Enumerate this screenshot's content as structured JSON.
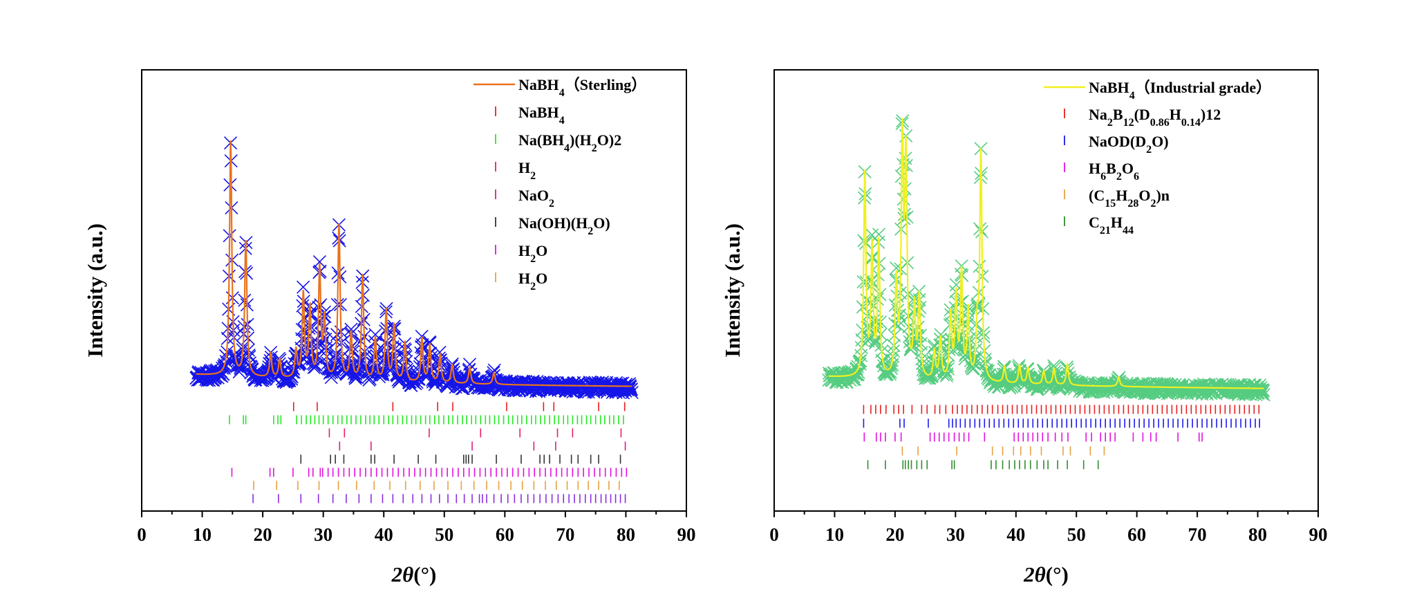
{
  "chart_data": [
    {
      "type": "scatter",
      "ylabel": "Intensity (a.u.)",
      "xlabel_symbol": "2θ",
      "xlabel_unit": "(°)",
      "xlim": [
        0,
        90
      ],
      "xticks": [
        0,
        10,
        20,
        30,
        40,
        50,
        60,
        70,
        80,
        90
      ],
      "yticks_shown": false,
      "legend_position": "top-right",
      "colors": {
        "observed": "#1515e8",
        "calculated": "#e8731c"
      },
      "pattern": {
        "observed_marker": "x",
        "x_range": [
          9,
          81
        ],
        "baseline_rel": 0.06,
        "peaks": [
          {
            "x": 14.7,
            "h": 1.0
          },
          {
            "x": 17.2,
            "h": 0.58
          },
          {
            "x": 21.3,
            "h": 0.1
          },
          {
            "x": 22.8,
            "h": 0.08
          },
          {
            "x": 25.5,
            "h": 0.12
          },
          {
            "x": 26.7,
            "h": 0.36
          },
          {
            "x": 27.8,
            "h": 0.3
          },
          {
            "x": 29.4,
            "h": 0.47
          },
          {
            "x": 30.2,
            "h": 0.25
          },
          {
            "x": 32.6,
            "h": 0.66
          },
          {
            "x": 34.6,
            "h": 0.2
          },
          {
            "x": 36.5,
            "h": 0.45
          },
          {
            "x": 38.6,
            "h": 0.18
          },
          {
            "x": 40.4,
            "h": 0.3
          },
          {
            "x": 41.7,
            "h": 0.24
          },
          {
            "x": 43.5,
            "h": 0.17
          },
          {
            "x": 46.3,
            "h": 0.19
          },
          {
            "x": 47.6,
            "h": 0.16
          },
          {
            "x": 49.3,
            "h": 0.12
          },
          {
            "x": 51.3,
            "h": 0.08
          },
          {
            "x": 54.2,
            "h": 0.07
          },
          {
            "x": 58.2,
            "h": 0.05
          }
        ]
      },
      "series": [
        {
          "name": "NaBH4（Sterling）",
          "label_parts": [
            [
              "NaBH",
              ""
            ],
            [
              "4",
              "sub"
            ],
            [
              "（Sterling）",
              ""
            ]
          ],
          "role": "calc",
          "color": "#e8731c"
        },
        {
          "name": "NaBH4",
          "label_parts": [
            [
              "NaBH",
              ""
            ],
            [
              "4",
              "sub"
            ]
          ],
          "role": "phase",
          "color": "#e81e1e",
          "reflections": [
            25.1,
            29.0,
            41.5,
            48.9,
            51.4,
            60.3,
            66.4,
            68.1,
            75.5,
            79.8
          ]
        },
        {
          "name": "Na(BH4)(H2O)2",
          "label_parts": [
            [
              "Na(BH",
              ""
            ],
            [
              "4",
              "sub"
            ],
            [
              ")(H",
              ""
            ],
            [
              "2",
              "sub"
            ],
            [
              "O)2",
              ""
            ]
          ],
          "role": "phase",
          "color": "#22e822",
          "reflections": [
            14.5,
            16.8,
            17.2,
            21.8,
            22.5,
            23.0,
            25.6,
            26.4,
            27.2,
            27.9,
            28.6,
            29.3,
            30.0,
            30.8,
            31.6,
            32.4,
            33.1,
            33.9,
            34.6,
            35.4,
            36.2,
            37.0,
            37.7,
            38.4,
            39.2,
            40.0,
            40.8,
            41.5,
            42.3,
            43.1,
            43.8,
            44.6,
            45.3,
            46.1,
            46.9,
            47.6,
            48.4,
            49.1,
            49.9,
            50.7,
            51.4,
            52.2,
            53.0,
            53.7,
            54.5,
            55.2,
            56.0,
            56.8,
            57.5,
            58.3,
            59.0,
            59.8,
            60.6,
            61.3,
            62.1,
            62.8,
            63.6,
            64.4,
            65.1,
            65.9,
            66.6,
            67.4,
            68.2,
            68.9,
            69.7,
            70.4,
            71.2,
            72.0,
            72.7,
            73.5,
            74.2,
            75.0,
            75.8,
            76.5,
            77.3,
            78.0,
            78.8,
            79.6
          ]
        },
        {
          "name": "H2",
          "label_parts": [
            [
              "H",
              ""
            ],
            [
              "2",
              "sub"
            ]
          ],
          "role": "phase",
          "color": "#e82060",
          "reflections": [
            31.0,
            33.5,
            47.5,
            56.0,
            62.5,
            68.7,
            71.2,
            79.2
          ]
        },
        {
          "name": "NaO2",
          "label_parts": [
            [
              "NaO",
              ""
            ],
            [
              "2",
              "sub"
            ]
          ],
          "role": "phase",
          "color": "#e01888",
          "reflections": [
            32.7,
            37.9,
            54.6,
            64.8,
            68.4,
            79.9
          ]
        },
        {
          "name": "Na(OH)(H2O)",
          "label_parts": [
            [
              "Na(OH)(H",
              ""
            ],
            [
              "2",
              "sub"
            ],
            [
              "O)",
              ""
            ]
          ],
          "role": "phase",
          "color": "#333333",
          "reflections": [
            26.3,
            31.2,
            32.0,
            33.4,
            37.9,
            38.5,
            41.7,
            45.7,
            48.6,
            53.2,
            53.6,
            54.0,
            54.6,
            58.6,
            62.7,
            65.8,
            66.5,
            67.4,
            69.1,
            71.0,
            72.1,
            74.2,
            75.5,
            79.1
          ]
        },
        {
          "name": "H2O",
          "label_parts": [
            [
              "H",
              ""
            ],
            [
              "2",
              "sub"
            ],
            [
              "O",
              ""
            ]
          ],
          "role": "phase",
          "color": "#e010e0",
          "reflections": [
            14.9,
            21.2,
            21.8,
            25.0,
            27.6,
            28.3,
            29.5,
            29.9,
            30.8,
            31.6,
            32.5,
            33.4,
            34.3,
            35.2,
            36.1,
            37.0,
            37.9,
            38.8,
            39.7,
            40.6,
            41.5,
            42.4,
            43.3,
            44.2,
            45.1,
            46.0,
            46.9,
            47.8,
            48.7,
            49.6,
            50.5,
            51.4,
            52.3,
            53.2,
            54.1,
            55.0,
            55.9,
            56.8,
            57.7,
            58.6,
            59.5,
            60.4,
            61.3,
            62.2,
            63.1,
            64.0,
            64.9,
            65.8,
            66.7,
            67.6,
            68.5,
            69.4,
            70.3,
            71.2,
            72.1,
            73.0,
            73.9,
            74.8,
            75.7,
            76.6,
            77.5,
            78.4,
            79.3,
            80.1
          ]
        },
        {
          "name": "H2O",
          "label_parts": [
            [
              "H",
              ""
            ],
            [
              "2",
              "sub"
            ],
            [
              "O",
              ""
            ]
          ],
          "role": "phase",
          "color": "#e8a040",
          "reflections": [
            18.5,
            22.3,
            25.8,
            29.3,
            32.5,
            35.5,
            38.4,
            41.0,
            43.6,
            46.0,
            48.3,
            50.6,
            52.8,
            54.9,
            57.0,
            59.0,
            61.0,
            62.9,
            64.8,
            66.7,
            68.5,
            70.3,
            72.1,
            73.8,
            75.5,
            77.2,
            78.9
          ]
        },
        {
          "role": "phase",
          "color": "#8a2be2",
          "reflections": [
            18.4,
            22.6,
            26.3,
            29.2,
            31.6,
            33.8,
            35.9,
            37.9,
            39.8,
            41.5,
            43.2,
            44.8,
            46.3,
            47.8,
            49.2,
            50.6,
            52.0,
            53.3,
            54.6,
            55.8,
            56.3,
            57.0,
            58.2,
            59.4,
            60.5,
            61.6,
            62.7,
            63.8,
            64.8,
            65.8,
            66.8,
            67.8,
            68.8,
            69.7,
            70.6,
            71.5,
            72.4,
            73.3,
            74.2,
            75.0,
            75.9,
            76.7,
            77.5,
            78.3,
            79.1,
            79.9
          ]
        }
      ]
    },
    {
      "type": "scatter",
      "ylabel": "Intensity (a.u.)",
      "xlabel_symbol": "2θ",
      "xlabel_unit": "(°)",
      "xlim": [
        0,
        90
      ],
      "xticks": [
        0,
        10,
        20,
        30,
        40,
        50,
        60,
        70,
        80,
        90
      ],
      "yticks_shown": false,
      "legend_position": "top-right",
      "colors": {
        "observed": "#55cc80",
        "calculated": "#f0f020"
      },
      "pattern": {
        "observed_marker": "x",
        "x_range": [
          9,
          81
        ],
        "baseline_rel": 0.06,
        "peaks": [
          {
            "x": 15.0,
            "h": 0.88
          },
          {
            "x": 16.2,
            "h": 0.55
          },
          {
            "x": 17.3,
            "h": 0.58
          },
          {
            "x": 20.2,
            "h": 0.4
          },
          {
            "x": 21.2,
            "h": 1.0
          },
          {
            "x": 21.8,
            "h": 0.92
          },
          {
            "x": 23.2,
            "h": 0.3
          },
          {
            "x": 24.0,
            "h": 0.35
          },
          {
            "x": 26.5,
            "h": 0.12
          },
          {
            "x": 27.5,
            "h": 0.18
          },
          {
            "x": 29.2,
            "h": 0.28
          },
          {
            "x": 30.1,
            "h": 0.36
          },
          {
            "x": 31.0,
            "h": 0.46
          },
          {
            "x": 32.1,
            "h": 0.3
          },
          {
            "x": 33.6,
            "h": 0.22
          },
          {
            "x": 34.2,
            "h": 0.98
          },
          {
            "x": 38.1,
            "h": 0.07
          },
          {
            "x": 40.6,
            "h": 0.08
          },
          {
            "x": 42.0,
            "h": 0.07
          },
          {
            "x": 44.6,
            "h": 0.06
          },
          {
            "x": 46.3,
            "h": 0.07
          },
          {
            "x": 48.5,
            "h": 0.09
          },
          {
            "x": 57.0,
            "h": 0.04
          }
        ]
      },
      "series": [
        {
          "name": "NaBH4（Industrial grade）",
          "label_parts": [
            [
              "NaBH",
              ""
            ],
            [
              "4",
              "sub"
            ],
            [
              "（Industrial grade）",
              ""
            ]
          ],
          "role": "calc",
          "color": "#f0f020"
        },
        {
          "name": "Na2B12(D0.86H0.14)12",
          "label_parts": [
            [
              "Na",
              ""
            ],
            [
              "2",
              "sub"
            ],
            [
              "B",
              ""
            ],
            [
              "12",
              "sub"
            ],
            [
              "(D",
              ""
            ],
            [
              "0.86",
              "sub"
            ],
            [
              "H",
              ""
            ],
            [
              "0.14",
              "sub"
            ],
            [
              ")12",
              ""
            ]
          ],
          "role": "phase",
          "color": "#e81e1e",
          "reflections": [
            14.8,
            16.0,
            16.8,
            17.6,
            18.5,
            19.8,
            20.6,
            21.4,
            22.8,
            24.4,
            25.3,
            26.6,
            27.4,
            28.4,
            29.5,
            30.3,
            31.1,
            31.9,
            32.7,
            33.6,
            34.4,
            35.3,
            36.1,
            37.0,
            37.8,
            38.6,
            39.4,
            40.2,
            41.0,
            41.8,
            42.6,
            43.4,
            44.2,
            45.0,
            45.8,
            46.6,
            47.4,
            48.2,
            49.0,
            49.8,
            50.6,
            51.4,
            52.2,
            53.0,
            53.8,
            54.6,
            55.4,
            56.2,
            57.0,
            57.8,
            58.6,
            59.4,
            60.2,
            61.0,
            61.8,
            62.6,
            63.4,
            64.2,
            65.0,
            65.8,
            66.6,
            67.4,
            68.2,
            69.0,
            69.8,
            70.6,
            71.4,
            72.2,
            73.0,
            73.8,
            74.6,
            75.4,
            76.2,
            77.0,
            77.8,
            78.6,
            79.4,
            80.2
          ]
        },
        {
          "name": "NaOD(D2O)",
          "label_parts": [
            [
              "NaOD(D",
              ""
            ],
            [
              "2",
              "sub"
            ],
            [
              "O)",
              ""
            ]
          ],
          "role": "phase",
          "color": "#1a1ae8",
          "reflections": [
            14.8,
            20.8,
            21.5,
            25.5,
            28.9,
            29.5,
            30.1,
            30.8,
            31.6,
            32.4,
            33.2,
            34.0,
            34.8,
            35.6,
            36.4,
            37.2,
            38.0,
            38.8,
            39.6,
            40.4,
            41.2,
            42.0,
            42.8,
            43.6,
            44.4,
            45.2,
            46.0,
            46.8,
            47.6,
            48.4,
            49.2,
            50.0,
            50.8,
            51.6,
            52.4,
            53.2,
            54.0,
            54.8,
            55.6,
            56.4,
            57.2,
            58.0,
            58.8,
            59.6,
            60.4,
            61.2,
            62.0,
            62.8,
            63.6,
            64.4,
            65.2,
            66.0,
            66.8,
            67.6,
            68.4,
            69.2,
            70.0,
            70.8,
            71.6,
            72.4,
            73.2,
            74.0,
            74.8,
            75.6,
            76.4,
            77.2,
            78.0,
            78.8,
            79.6,
            80.3
          ]
        },
        {
          "name": "H6B2O6",
          "label_parts": [
            [
              "H",
              ""
            ],
            [
              "6",
              "sub"
            ],
            [
              "B",
              ""
            ],
            [
              "2",
              "sub"
            ],
            [
              "O",
              ""
            ],
            [
              "6",
              "sub"
            ]
          ],
          "role": "phase",
          "color": "#e010e0",
          "reflections": [
            14.9,
            16.9,
            17.6,
            18.4,
            20.0,
            21.0,
            25.8,
            26.5,
            27.3,
            28.1,
            28.9,
            29.8,
            30.6,
            31.4,
            32.2,
            34.8,
            39.7,
            40.4,
            41.2,
            42.0,
            42.8,
            43.6,
            44.4,
            45.3,
            46.5,
            47.6,
            48.6,
            51.6,
            52.5,
            54.0,
            54.8,
            55.6,
            56.4,
            59.4,
            61.0,
            62.3,
            63.2,
            66.8,
            70.3,
            70.8
          ]
        },
        {
          "name": "(C15H28O2)n",
          "label_parts": [
            [
              "(C",
              ""
            ],
            [
              "15",
              "sub"
            ],
            [
              "H",
              ""
            ],
            [
              "28",
              "sub"
            ],
            [
              "O",
              ""
            ],
            [
              "2",
              "sub"
            ],
            [
              ")n",
              ""
            ]
          ],
          "role": "phase",
          "color": "#e8a040",
          "reflections": [
            21.2,
            23.8,
            30.2,
            36.1,
            37.8,
            39.6,
            40.8,
            42.4,
            44.2,
            47.8,
            49.0,
            52.3,
            54.6
          ]
        },
        {
          "name": "C21H44",
          "label_parts": [
            [
              "C",
              ""
            ],
            [
              "21",
              "sub"
            ],
            [
              "H",
              ""
            ],
            [
              "44",
              "sub"
            ]
          ],
          "role": "phase",
          "color": "#2e8b2e",
          "reflections": [
            15.5,
            18.4,
            21.3,
            21.7,
            22.2,
            22.7,
            23.6,
            24.4,
            25.3,
            29.4,
            29.8,
            35.9,
            36.7,
            37.8,
            38.9,
            39.8,
            40.6,
            41.5,
            42.4,
            43.5,
            44.6,
            45.3,
            46.9,
            48.5,
            51.2,
            53.6
          ]
        }
      ]
    }
  ]
}
